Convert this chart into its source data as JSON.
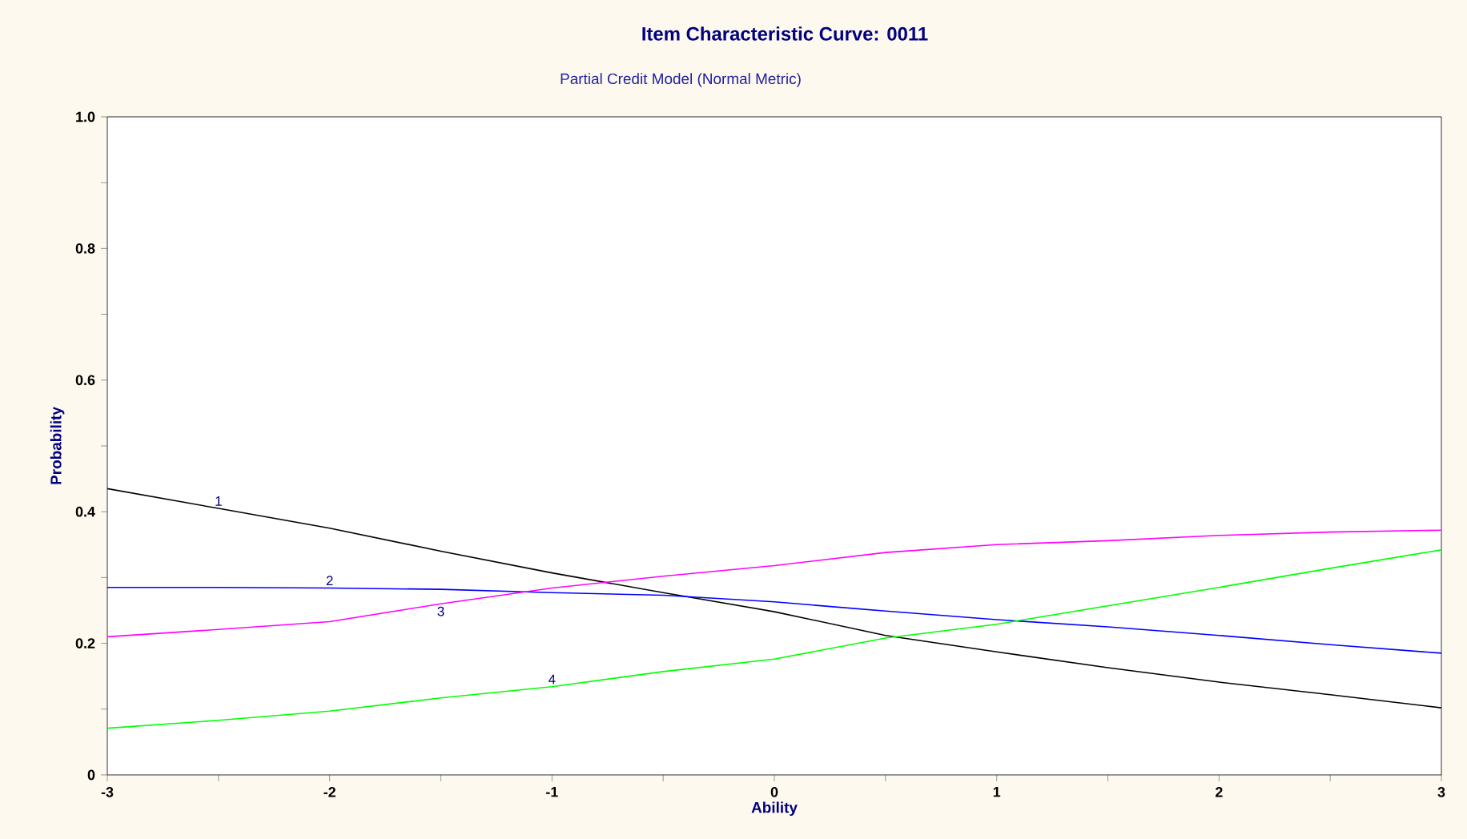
{
  "chart_data": {
    "type": "line",
    "title": "Item Characteristic Curve: 0011",
    "subtitle": "Partial Credit Model (Normal Metric)",
    "xlabel": "Ability",
    "ylabel": "Probability",
    "x": [
      -3,
      -2.5,
      -2,
      -1.5,
      -1,
      -0.5,
      0,
      0.5,
      1,
      1.5,
      2,
      2.5,
      3
    ],
    "series": [
      {
        "name": "1",
        "color": "#000000",
        "values": [
          0.435,
          0.405,
          0.375,
          0.34,
          0.307,
          0.277,
          0.248,
          0.212,
          0.187,
          0.163,
          0.141,
          0.122,
          0.102
        ]
      },
      {
        "name": "2",
        "color": "#0000ff",
        "values": [
          0.285,
          0.285,
          0.284,
          0.282,
          0.277,
          0.273,
          0.263,
          0.249,
          0.236,
          0.225,
          0.212,
          0.198,
          0.185
        ]
      },
      {
        "name": "3",
        "color": "#ff00ff",
        "values": [
          0.21,
          0.221,
          0.233,
          0.26,
          0.284,
          0.302,
          0.318,
          0.338,
          0.35,
          0.356,
          0.364,
          0.369,
          0.372
        ]
      },
      {
        "name": "4",
        "color": "#00ff00",
        "values": [
          0.071,
          0.083,
          0.097,
          0.117,
          0.134,
          0.157,
          0.176,
          0.208,
          0.229,
          0.257,
          0.285,
          0.314,
          0.342
        ]
      }
    ],
    "xlim": [
      -3,
      3
    ],
    "ylim": [
      0,
      1
    ],
    "xticks": [
      -3,
      {
        "value": -2.5,
        "label": null
      },
      -2,
      {
        "value": -1.5,
        "label": null
      },
      -1,
      {
        "value": -0.5,
        "label": null
      },
      0,
      {
        "value": 0.5,
        "label": null
      },
      1,
      {
        "value": 1.5,
        "label": null
      },
      2,
      {
        "value": 2.5,
        "label": null
      },
      3
    ],
    "yticks": [
      0,
      {
        "value": 0.1,
        "label": null
      },
      0.2,
      {
        "value": 0.3,
        "label": null
      },
      0.4,
      {
        "value": 0.5,
        "label": null
      },
      0.6,
      {
        "value": 0.7,
        "label": null
      },
      0.8,
      {
        "value": 0.9,
        "label": null
      },
      {
        "value": 1,
        "label": "1.0"
      }
    ],
    "grid": false,
    "legend": false,
    "marker": "none",
    "line_style": "solid"
  }
}
